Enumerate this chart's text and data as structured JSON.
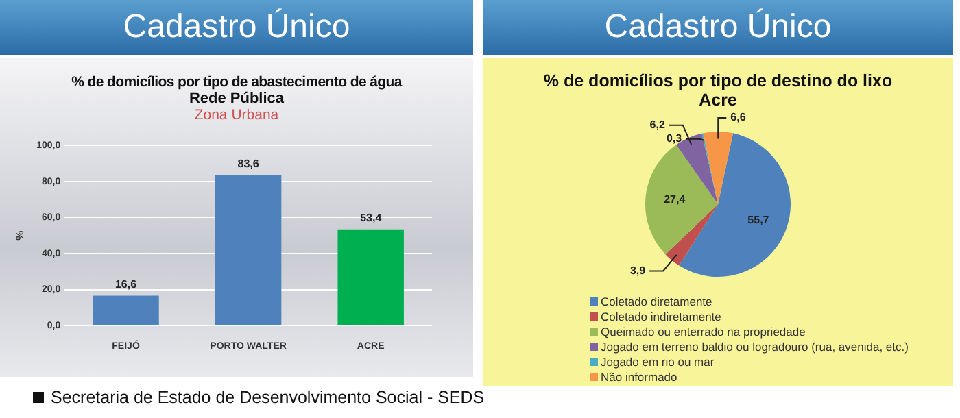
{
  "chart_data": [
    {
      "type": "bar",
      "title": "% de domicílios por tipo de abastecimento de água",
      "subtitle": "Rede Pública",
      "ylabel": "%",
      "annotations": [
        "Cadastro Único",
        "Zona Urbana",
        "Secretaria de Estado de Desenvolvimento Social - SEDS"
      ],
      "categories": [
        "FEIJÓ",
        "PORTO WALTER",
        "ACRE"
      ],
      "values": [
        16.6,
        83.6,
        53.4
      ],
      "colors": [
        "#4f81bd",
        "#4f81bd",
        "#00b050"
      ],
      "value_labels": [
        "16,6",
        "83,6",
        "53,4"
      ],
      "ylim": [
        0,
        100
      ],
      "yticks": [
        {
          "value": 0,
          "label": "0,0"
        },
        {
          "value": 20,
          "label": "20,0"
        },
        {
          "value": 40,
          "label": "40,0"
        },
        {
          "value": 60,
          "label": "60,0"
        },
        {
          "value": 80,
          "label": "80,0"
        },
        {
          "value": 100,
          "label": "100,0"
        }
      ],
      "grid": "y",
      "legend": false
    },
    {
      "type": "pie",
      "title": "% de domicílios por tipo de destino do lixo",
      "subtitle": "Acre",
      "annotations": [
        "Cadastro Único"
      ],
      "categories": [
        "Coletado diretamente",
        "Coletado indiretamente",
        "Queimado ou enterrado na propriedade",
        "Jogado em terreno baldio ou logradouro (rua, avenida, etc.)",
        "Jogado em rio ou mar",
        "Não informado"
      ],
      "values": [
        55.7,
        3.9,
        27.4,
        6.2,
        0.3,
        6.6
      ],
      "colors": [
        "#4f81bd",
        "#c0504d",
        "#9bbb59",
        "#8064a2",
        "#4bacc6",
        "#f79646"
      ],
      "value_labels": [
        "55,7",
        "3,9",
        "27,4",
        "6,2",
        "0,3",
        "6,6"
      ],
      "legend": "bottom"
    }
  ]
}
